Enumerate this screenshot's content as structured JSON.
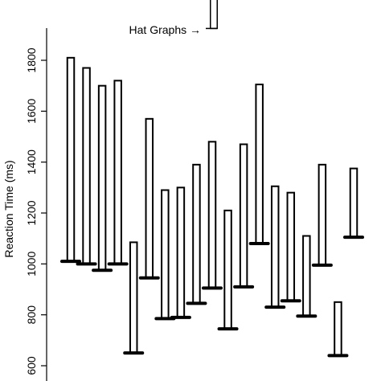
{
  "chart_data": {
    "type": "bar",
    "ylabel": "Reaction Time (ms)",
    "ylim": [
      580,
      1890
    ],
    "yticks": [
      600,
      800,
      1000,
      1200,
      1400,
      1600,
      1800
    ],
    "tick_labels": [
      "600",
      "800",
      "1000",
      "1200",
      "1400",
      "1600",
      "1800"
    ],
    "annotation": "Hat Graphs →",
    "hats": [
      {
        "base": 1010,
        "top": 1810
      },
      {
        "base": 1000,
        "top": 1770
      },
      {
        "base": 975,
        "top": 1700
      },
      {
        "base": 1000,
        "top": 1720
      },
      {
        "base": 650,
        "top": 1085
      },
      {
        "base": 945,
        "top": 1570
      },
      {
        "base": 785,
        "top": 1290
      },
      {
        "base": 790,
        "top": 1300
      },
      {
        "base": 845,
        "top": 1390
      },
      {
        "base": 905,
        "top": 1480
      },
      {
        "base": 745,
        "top": 1210
      },
      {
        "base": 910,
        "top": 1470
      },
      {
        "base": 1080,
        "top": 1705
      },
      {
        "base": 830,
        "top": 1305
      },
      {
        "base": 855,
        "top": 1280
      },
      {
        "base": 795,
        "top": 1110
      },
      {
        "base": 995,
        "top": 1390
      },
      {
        "base": 640,
        "top": 850
      },
      {
        "base": 1105,
        "top": 1375
      }
    ],
    "legend_hat": {
      "base": 1925,
      "top": 2050
    }
  }
}
